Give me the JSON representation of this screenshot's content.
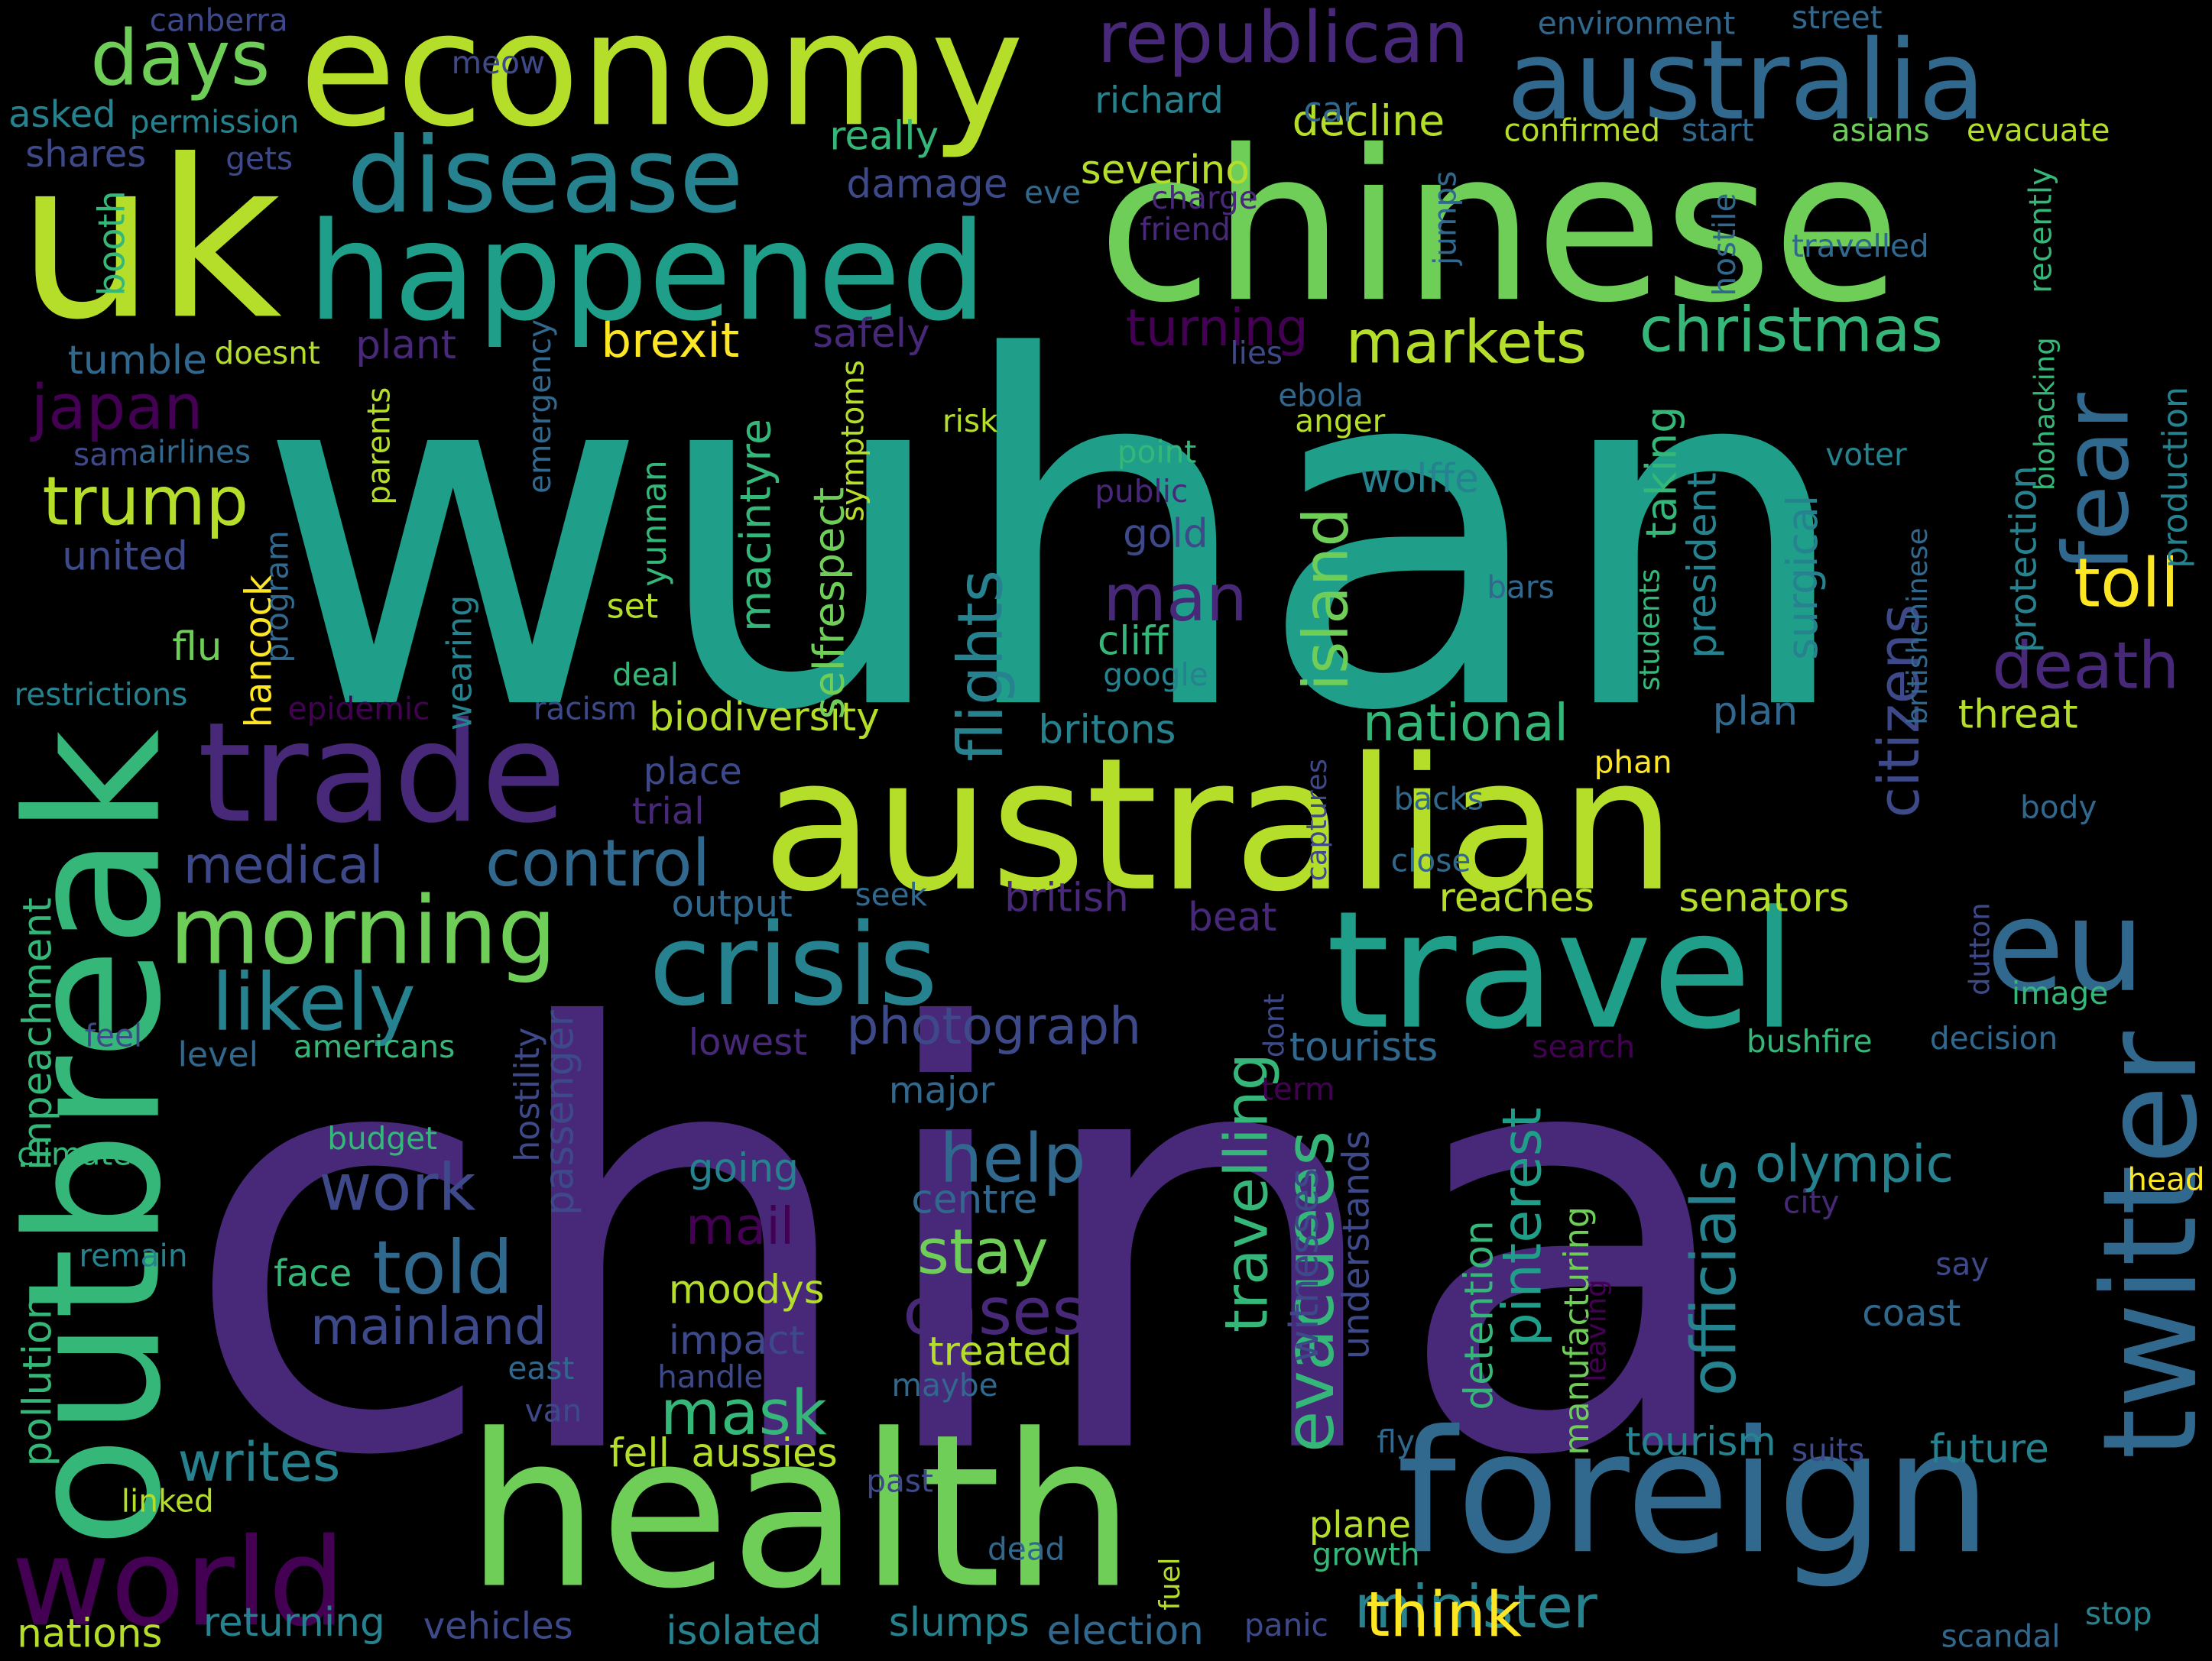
{
  "palette": [
    "#440154",
    "#482878",
    "#3e4989",
    "#31688e",
    "#26828e",
    "#1f9e89",
    "#35b779",
    "#6ece58",
    "#b5de2b",
    "#fde725"
  ],
  "words": [
    {
      "text": "wuhan",
      "color": "#1f9e89"
    },
    {
      "text": "china",
      "color": "#482878"
    },
    {
      "text": "chinese",
      "color": "#6ece58"
    },
    {
      "text": "australian",
      "color": "#b5de2b"
    },
    {
      "text": "health",
      "color": "#6ece58"
    },
    {
      "text": "economy",
      "color": "#b5de2b"
    },
    {
      "text": "uk",
      "color": "#b5de2b"
    },
    {
      "text": "foreign",
      "color": "#31688e"
    },
    {
      "text": "outbreak",
      "color": "#35b779"
    },
    {
      "text": "australia",
      "color": "#31688e"
    },
    {
      "text": "travel",
      "color": "#1f9e89"
    },
    {
      "text": "happened",
      "color": "#1f9e89"
    },
    {
      "text": "trade",
      "color": "#482878"
    },
    {
      "text": "world",
      "color": "#440154"
    },
    {
      "text": "disease",
      "color": "#26828e"
    },
    {
      "text": "crisis",
      "color": "#26828e"
    },
    {
      "text": "twitter",
      "color": "#31688e"
    },
    {
      "text": "eu",
      "color": "#31688e"
    },
    {
      "text": "morning",
      "color": "#6ece58"
    },
    {
      "text": "republican",
      "color": "#482878"
    },
    {
      "text": "christmas",
      "color": "#35b779"
    },
    {
      "text": "fear",
      "color": "#31688e"
    },
    {
      "text": "markets",
      "color": "#b5de2b"
    },
    {
      "text": "days",
      "color": "#6ece58"
    },
    {
      "text": "likely",
      "color": "#26828e"
    },
    {
      "text": "trump",
      "color": "#b5de2b"
    },
    {
      "text": "control",
      "color": "#31688e"
    },
    {
      "text": "japan",
      "color": "#440154"
    },
    {
      "text": "evacuees",
      "color": "#35b779"
    },
    {
      "text": "officials",
      "color": "#26828e"
    },
    {
      "text": "flights",
      "color": "#26828e"
    },
    {
      "text": "island",
      "color": "#6ece58"
    },
    {
      "text": "citizens",
      "color": "#3e4989"
    },
    {
      "text": "death",
      "color": "#482878"
    },
    {
      "text": "toll",
      "color": "#fde725"
    },
    {
      "text": "man",
      "color": "#482878"
    },
    {
      "text": "help",
      "color": "#31688e"
    },
    {
      "text": "told",
      "color": "#31688e"
    },
    {
      "text": "work",
      "color": "#3e4989"
    },
    {
      "text": "stay",
      "color": "#6ece58"
    },
    {
      "text": "mask",
      "color": "#35b779"
    },
    {
      "text": "cases",
      "color": "#482878"
    },
    {
      "text": "minister",
      "color": "#26828e"
    },
    {
      "text": "think",
      "color": "#fde725"
    },
    {
      "text": "photograph",
      "color": "#3e4989"
    },
    {
      "text": "olympic",
      "color": "#26828e"
    },
    {
      "text": "travelling",
      "color": "#35b779"
    },
    {
      "text": "pinterest",
      "color": "#1f9e89"
    },
    {
      "text": "writes",
      "color": "#26828e"
    },
    {
      "text": "mainland",
      "color": "#3e4989"
    },
    {
      "text": "medical",
      "color": "#3e4989"
    },
    {
      "text": "national",
      "color": "#35b779"
    },
    {
      "text": "brexit",
      "color": "#fde725"
    },
    {
      "text": "biodiversity",
      "color": "#b5de2b"
    },
    {
      "text": "tourism",
      "color": "#26828e"
    },
    {
      "text": "future",
      "color": "#26828e"
    },
    {
      "text": "mail",
      "color": "#440154"
    },
    {
      "text": "britons",
      "color": "#26828e"
    },
    {
      "text": "turning",
      "color": "#440154"
    },
    {
      "text": "decline",
      "color": "#b5de2b"
    },
    {
      "text": "severino",
      "color": "#b5de2b"
    },
    {
      "text": "richard",
      "color": "#26828e"
    },
    {
      "text": "gold",
      "color": "#3e4989"
    },
    {
      "text": "wolffe",
      "color": "#26828e"
    },
    {
      "text": "cliff",
      "color": "#35b779"
    },
    {
      "text": "macintyre",
      "color": "#35b779"
    },
    {
      "text": "selfrespect",
      "color": "#6ece58"
    },
    {
      "text": "yunnan",
      "color": "#35b779"
    },
    {
      "text": "taking",
      "color": "#35b779"
    },
    {
      "text": "president",
      "color": "#26828e"
    },
    {
      "text": "surgical",
      "color": "#26828e"
    },
    {
      "text": "protection",
      "color": "#26828e"
    },
    {
      "text": "production",
      "color": "#26828e"
    },
    {
      "text": "manufacturing",
      "color": "#6ece58"
    },
    {
      "text": "detention",
      "color": "#35b779"
    },
    {
      "text": "witnesses",
      "color": "#3e4989"
    },
    {
      "text": "understands",
      "color": "#3e4989"
    },
    {
      "text": "passenger",
      "color": "#3e4989"
    },
    {
      "text": "hostility",
      "color": "#3e4989"
    },
    {
      "text": "impeachment",
      "color": "#35b779"
    },
    {
      "text": "pollution",
      "color": "#35b779"
    },
    {
      "text": "hancock",
      "color": "#fde725"
    },
    {
      "text": "wearing",
      "color": "#26828e"
    },
    {
      "text": "program",
      "color": "#31688e"
    },
    {
      "text": "emergency",
      "color": "#31688e"
    },
    {
      "text": "parents",
      "color": "#b5de2b"
    },
    {
      "text": "symptoms",
      "color": "#b5de2b"
    },
    {
      "text": "booth",
      "color": "#35b779"
    },
    {
      "text": "hostile",
      "color": "#31688e"
    },
    {
      "text": "recently",
      "color": "#35b779"
    },
    {
      "text": "biohacking",
      "color": "#35b779"
    },
    {
      "text": "britishchinese",
      "color": "#31688e"
    },
    {
      "text": "students",
      "color": "#35b779"
    },
    {
      "text": "jumps",
      "color": "#31688e"
    },
    {
      "text": "dont",
      "color": "#3e4989"
    },
    {
      "text": "fuel",
      "color": "#b5de2b"
    },
    {
      "text": "dutton",
      "color": "#3e4989"
    },
    {
      "text": "leaving",
      "color": "#440154"
    },
    {
      "text": "captures",
      "color": "#3e4989"
    },
    {
      "text": "canberra",
      "color": "#3e4989"
    },
    {
      "text": "meow",
      "color": "#3e4989"
    },
    {
      "text": "asked",
      "color": "#26828e"
    },
    {
      "text": "permission",
      "color": "#26828e"
    },
    {
      "text": "shares",
      "color": "#3e4989"
    },
    {
      "text": "gets",
      "color": "#3e4989"
    },
    {
      "text": "environment",
      "color": "#31688e"
    },
    {
      "text": "street",
      "color": "#31688e"
    },
    {
      "text": "car",
      "color": "#31688e"
    },
    {
      "text": "confirmed",
      "color": "#b5de2b"
    },
    {
      "text": "start",
      "color": "#31688e"
    },
    {
      "text": "asians",
      "color": "#6ece58"
    },
    {
      "text": "evacuate",
      "color": "#b5de2b"
    },
    {
      "text": "really",
      "color": "#35b779"
    },
    {
      "text": "damage",
      "color": "#3e4989"
    },
    {
      "text": "eve",
      "color": "#31688e"
    },
    {
      "text": "charge",
      "color": "#482878"
    },
    {
      "text": "friend",
      "color": "#482878"
    },
    {
      "text": "travelled",
      "color": "#31688e"
    },
    {
      "text": "tumble",
      "color": "#31688e"
    },
    {
      "text": "doesnt",
      "color": "#b5de2b"
    },
    {
      "text": "plant",
      "color": "#482878"
    },
    {
      "text": "safely",
      "color": "#482878"
    },
    {
      "text": "lies",
      "color": "#3e4989"
    },
    {
      "text": "ebola",
      "color": "#31688e"
    },
    {
      "text": "anger",
      "color": "#b5de2b"
    },
    {
      "text": "risk",
      "color": "#b5de2b"
    },
    {
      "text": "point",
      "color": "#35b779"
    },
    {
      "text": "public",
      "color": "#482878"
    },
    {
      "text": "voter",
      "color": "#26828e"
    },
    {
      "text": "sam",
      "color": "#3e4989"
    },
    {
      "text": "airlines",
      "color": "#31688e"
    },
    {
      "text": "united",
      "color": "#3e4989"
    },
    {
      "text": "flu",
      "color": "#6ece58"
    },
    {
      "text": "restrictions",
      "color": "#26828e"
    },
    {
      "text": "epidemic",
      "color": "#440154"
    },
    {
      "text": "racism",
      "color": "#3e4989"
    },
    {
      "text": "deal",
      "color": "#35b779"
    },
    {
      "text": "set",
      "color": "#b5de2b"
    },
    {
      "text": "google",
      "color": "#26828e"
    },
    {
      "text": "bars",
      "color": "#31688e"
    },
    {
      "text": "plan",
      "color": "#31688e"
    },
    {
      "text": "threat",
      "color": "#b5de2b"
    },
    {
      "text": "place",
      "color": "#3e4989"
    },
    {
      "text": "trial",
      "color": "#482878"
    },
    {
      "text": "phan",
      "color": "#fde725"
    },
    {
      "text": "backs",
      "color": "#31688e"
    },
    {
      "text": "body",
      "color": "#31688e"
    },
    {
      "text": "output",
      "color": "#31688e"
    },
    {
      "text": "seek",
      "color": "#31688e"
    },
    {
      "text": "british",
      "color": "#482878"
    },
    {
      "text": "close",
      "color": "#31688e"
    },
    {
      "text": "reaches",
      "color": "#b5de2b"
    },
    {
      "text": "senators",
      "color": "#b5de2b"
    },
    {
      "text": "beat",
      "color": "#482878"
    },
    {
      "text": "image",
      "color": "#35b779"
    },
    {
      "text": "feel",
      "color": "#3e4989"
    },
    {
      "text": "americans",
      "color": "#35b779"
    },
    {
      "text": "level",
      "color": "#31688e"
    },
    {
      "text": "lowest",
      "color": "#482878"
    },
    {
      "text": "tourists",
      "color": "#31688e"
    },
    {
      "text": "search",
      "color": "#440154"
    },
    {
      "text": "bushfire",
      "color": "#35b779"
    },
    {
      "text": "decision",
      "color": "#31688e"
    },
    {
      "text": "major",
      "color": "#31688e"
    },
    {
      "text": "term",
      "color": "#440154"
    },
    {
      "text": "budget",
      "color": "#35b779"
    },
    {
      "text": "climate",
      "color": "#35b779"
    },
    {
      "text": "going",
      "color": "#26828e"
    },
    {
      "text": "centre",
      "color": "#31688e"
    },
    {
      "text": "city",
      "color": "#482878"
    },
    {
      "text": "head",
      "color": "#fde725"
    },
    {
      "text": "remain",
      "color": "#26828e"
    },
    {
      "text": "face",
      "color": "#35b779"
    },
    {
      "text": "say",
      "color": "#3e4989"
    },
    {
      "text": "moodys",
      "color": "#b5de2b"
    },
    {
      "text": "impact",
      "color": "#3e4989"
    },
    {
      "text": "coast",
      "color": "#31688e"
    },
    {
      "text": "treated",
      "color": "#b5de2b"
    },
    {
      "text": "east",
      "color": "#31688e"
    },
    {
      "text": "handle",
      "color": "#3e4989"
    },
    {
      "text": "maybe",
      "color": "#31688e"
    },
    {
      "text": "van",
      "color": "#3e4989"
    },
    {
      "text": "fly",
      "color": "#31688e"
    },
    {
      "text": "suits",
      "color": "#3e4989"
    },
    {
      "text": "fell",
      "color": "#b5de2b"
    },
    {
      "text": "aussies",
      "color": "#b5de2b"
    },
    {
      "text": "past",
      "color": "#3e4989"
    },
    {
      "text": "linked",
      "color": "#b5de2b"
    },
    {
      "text": "plane",
      "color": "#b5de2b"
    },
    {
      "text": "growth",
      "color": "#35b779"
    },
    {
      "text": "dead",
      "color": "#31688e"
    },
    {
      "text": "returning",
      "color": "#26828e"
    },
    {
      "text": "vehicles",
      "color": "#3e4989"
    },
    {
      "text": "isolated",
      "color": "#26828e"
    },
    {
      "text": "slumps",
      "color": "#26828e"
    },
    {
      "text": "election",
      "color": "#31688e"
    },
    {
      "text": "panic",
      "color": "#3e4989"
    },
    {
      "text": "nations",
      "color": "#b5de2b"
    },
    {
      "text": "stop",
      "color": "#26828e"
    },
    {
      "text": "scandal",
      "color": "#31688e"
    }
  ]
}
